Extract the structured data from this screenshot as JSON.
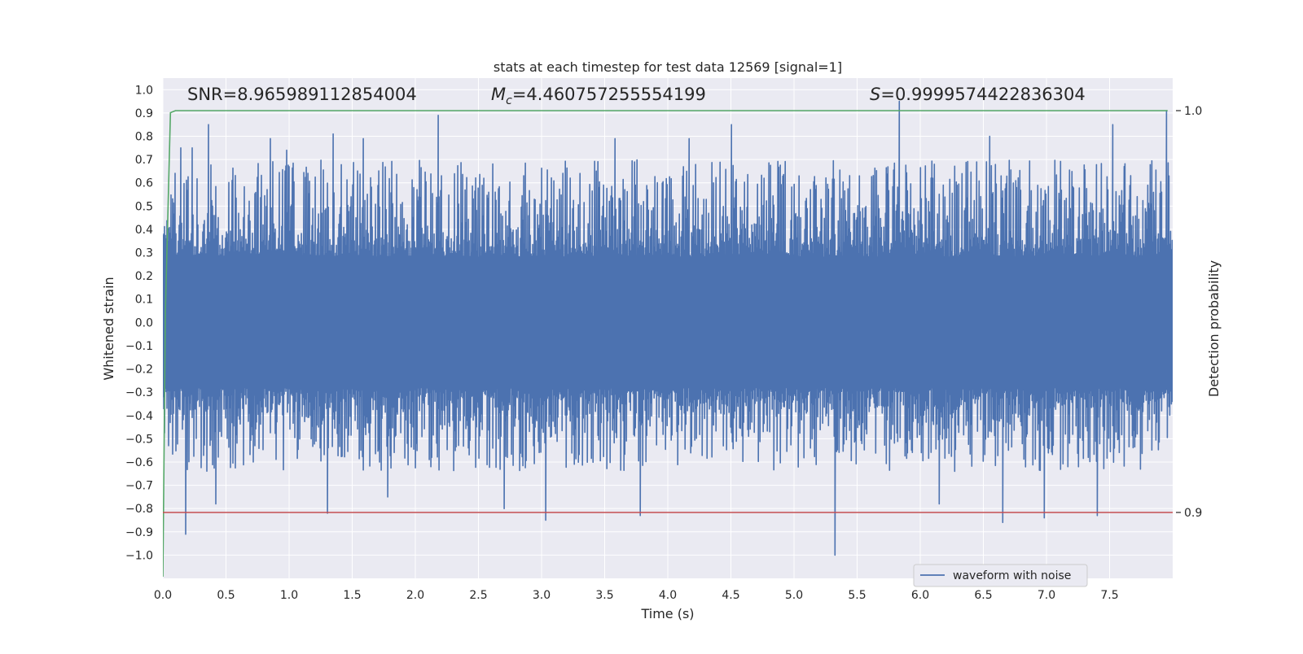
{
  "chart_data": {
    "type": "line",
    "title": "stats at each timestep for test data 12569 [signal=1]",
    "xlabel": "Time (s)",
    "ylabel": "Whitened strain",
    "y2label": "Detection probability",
    "xlim": [
      0.0,
      8.0
    ],
    "ylim": [
      -1.1,
      1.05
    ],
    "y2lim": [
      0.8836,
      1.0081
    ],
    "x_ticks": [
      "0.0",
      "0.5",
      "1.0",
      "1.5",
      "2.0",
      "2.5",
      "3.0",
      "3.5",
      "4.0",
      "4.5",
      "5.0",
      "5.5",
      "6.0",
      "6.5",
      "7.0",
      "7.5"
    ],
    "y_ticks": [
      "1.0",
      "0.9",
      "0.8",
      "0.7",
      "0.6",
      "0.5",
      "0.4",
      "0.3",
      "0.2",
      "0.1",
      "0.0",
      "−0.1",
      "−0.2",
      "−0.3",
      "−0.4",
      "−0.5",
      "−0.6",
      "−0.7",
      "−0.8",
      "−0.9",
      "−1.0"
    ],
    "y2_ticks": [
      "1.0",
      "0.9"
    ],
    "grid": true,
    "legend_placement": "bottom-right",
    "annotations": {
      "snr": "SNR=8.965989112854004",
      "mc_symbol": "M",
      "mc_sub": "c",
      "mc_value": "=4.460757255554199",
      "s_symbol": "S",
      "s_value": "=0.9999574422836304"
    },
    "series": [
      {
        "name": "waveform with noise",
        "axis": "left",
        "color": "#4c72b0",
        "description_only": false,
        "x_range": [
          0.0,
          7.996
        ],
        "sample_rate_hz": 2048,
        "envelope_core": [
          -0.3,
          0.3
        ],
        "extremes": [
          [
            0.14,
            0.75
          ],
          [
            0.18,
            -0.91
          ],
          [
            0.23,
            0.75
          ],
          [
            0.36,
            0.85
          ],
          [
            0.42,
            -0.78
          ],
          [
            0.85,
            0.79
          ],
          [
            0.98,
            0.74
          ],
          [
            1.3,
            -0.82
          ],
          [
            1.35,
            0.81
          ],
          [
            1.59,
            0.79
          ],
          [
            1.78,
            -0.75
          ],
          [
            2.18,
            0.89
          ],
          [
            2.7,
            -0.8
          ],
          [
            3.03,
            -0.85
          ],
          [
            3.58,
            0.79
          ],
          [
            3.78,
            -0.83
          ],
          [
            4.17,
            0.79
          ],
          [
            4.5,
            0.85
          ],
          [
            5.32,
            -1.0
          ],
          [
            5.83,
            0.95
          ],
          [
            6.15,
            -0.78
          ],
          [
            6.55,
            0.8
          ],
          [
            6.65,
            -0.86
          ],
          [
            6.98,
            -0.84
          ],
          [
            7.4,
            -0.83
          ],
          [
            7.52,
            0.85
          ],
          [
            7.95,
            0.91
          ]
        ]
      },
      {
        "name": "",
        "axis": "right",
        "color": "#55a868",
        "points": [
          [
            0.0,
            0.884
          ],
          [
            0.02,
            0.95
          ],
          [
            0.06,
            0.9995
          ],
          [
            0.1,
            1.0
          ],
          [
            0.2,
            1.0
          ],
          [
            7.96,
            1.0
          ]
        ]
      },
      {
        "name": "",
        "axis": "right",
        "color": "#c44e52",
        "points": [
          [
            0.0,
            0.9
          ],
          [
            8.0,
            0.9
          ]
        ]
      }
    ],
    "legend": [
      {
        "label": "waveform with noise",
        "color": "#4c72b0"
      }
    ],
    "colors": {
      "axes_bg": "#eaeaf2",
      "grid": "#ffffff",
      "text": "#262626"
    }
  }
}
